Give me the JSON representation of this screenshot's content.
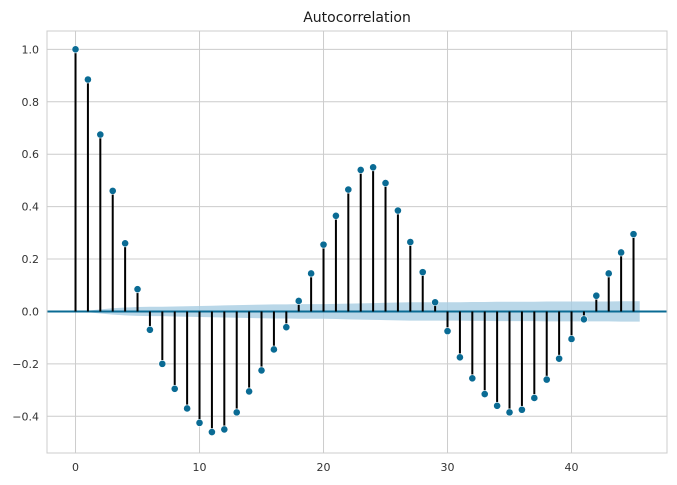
{
  "chart_data": {
    "type": "stem",
    "title": "Autocorrelation",
    "xlabel": "",
    "ylabel": "",
    "xlim": [
      -2.3,
      47.7
    ],
    "ylim": [
      -0.54,
      1.07
    ],
    "x_ticks": [
      0,
      10,
      20,
      30,
      40
    ],
    "y_ticks": [
      -0.4,
      -0.2,
      0.0,
      0.2,
      0.4,
      0.6,
      0.8,
      1.0
    ],
    "x_tick_labels": [
      "0",
      "10",
      "20",
      "30",
      "40"
    ],
    "y_tick_labels": [
      "−0.4",
      "−0.2",
      "0.0",
      "0.2",
      "0.4",
      "0.6",
      "0.8",
      "1.0"
    ],
    "grid": true,
    "lags": [
      0,
      1,
      2,
      3,
      4,
      5,
      6,
      7,
      8,
      9,
      10,
      11,
      12,
      13,
      14,
      15,
      16,
      17,
      18,
      19,
      20,
      21,
      22,
      23,
      24,
      25,
      26,
      27,
      28,
      29,
      30,
      31,
      32,
      33,
      34,
      35,
      36,
      37,
      38,
      39,
      40,
      41,
      42,
      43,
      44,
      45
    ],
    "values": [
      1.0,
      0.885,
      0.675,
      0.46,
      0.26,
      0.085,
      -0.07,
      -0.2,
      -0.295,
      -0.37,
      -0.425,
      -0.46,
      -0.45,
      -0.385,
      -0.305,
      -0.225,
      -0.145,
      -0.06,
      0.04,
      0.145,
      0.255,
      0.365,
      0.465,
      0.54,
      0.55,
      0.49,
      0.385,
      0.265,
      0.15,
      0.035,
      -0.075,
      -0.175,
      -0.255,
      -0.315,
      -0.36,
      -0.385,
      -0.375,
      -0.33,
      -0.26,
      -0.18,
      -0.105,
      -0.03,
      0.06,
      0.145,
      0.225,
      0.295
    ],
    "confidence_band_upper": [
      0.0,
      0.003,
      0.008,
      0.012,
      0.015,
      0.017,
      0.018,
      0.018,
      0.019,
      0.02,
      0.021,
      0.022,
      0.023,
      0.024,
      0.025,
      0.026,
      0.027,
      0.027,
      0.028,
      0.028,
      0.028,
      0.029,
      0.03,
      0.031,
      0.032,
      0.033,
      0.034,
      0.035,
      0.035,
      0.035,
      0.035,
      0.035,
      0.036,
      0.036,
      0.037,
      0.037,
      0.037,
      0.037,
      0.038,
      0.038,
      0.038,
      0.038,
      0.038,
      0.038,
      0.039,
      0.039,
      0.039
    ],
    "confidence_band_x": [
      0,
      1,
      2,
      3,
      4,
      5,
      6,
      7,
      8,
      9,
      10,
      11,
      12,
      13,
      14,
      15,
      16,
      17,
      18,
      19,
      20,
      21,
      22,
      23,
      24,
      25,
      26,
      27,
      28,
      29,
      30,
      31,
      32,
      33,
      34,
      35,
      36,
      37,
      38,
      39,
      40,
      41,
      42,
      43,
      44,
      45,
      45.5
    ],
    "colors": {
      "marker": "#0a6b94",
      "stem": "#000000",
      "zero_line": "#0a6b94",
      "band": "#a8cde2",
      "grid": "#cccccc",
      "axes_edge": "#cccccc"
    }
  }
}
